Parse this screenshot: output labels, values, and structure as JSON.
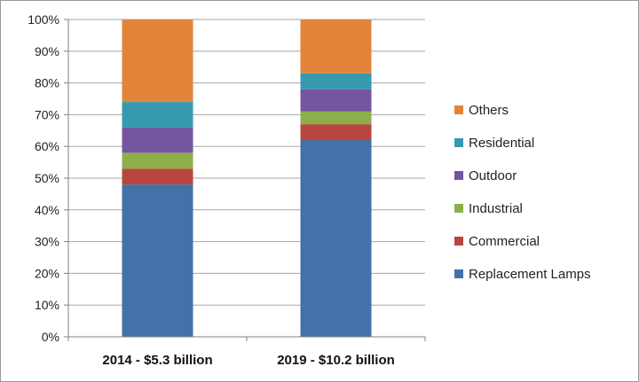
{
  "chart_data": {
    "type": "bar",
    "stacked": true,
    "percent": true,
    "categories": [
      "2014 - $5.3 billion",
      "2019 - $10.2 billion"
    ],
    "series": [
      {
        "name": "Replacement Lamps",
        "color": "#4472a8",
        "values": [
          48,
          62
        ]
      },
      {
        "name": "Commercial",
        "color": "#b84540",
        "values": [
          5,
          5
        ]
      },
      {
        "name": "Industrial",
        "color": "#8caf4a",
        "values": [
          5,
          4
        ]
      },
      {
        "name": "Outdoor",
        "color": "#7455a0",
        "values": [
          8,
          7
        ]
      },
      {
        "name": "Residential",
        "color": "#3799b0",
        "values": [
          8,
          5
        ]
      },
      {
        "name": "Others",
        "color": "#e2853a",
        "values": [
          26,
          17
        ]
      }
    ],
    "yticks": [
      "0%",
      "10%",
      "20%",
      "30%",
      "40%",
      "50%",
      "60%",
      "70%",
      "80%",
      "90%",
      "100%"
    ],
    "ylim": [
      0,
      100
    ],
    "grid": true,
    "legend_position": "right",
    "legend_order": [
      "Others",
      "Residential",
      "Outdoor",
      "Industrial",
      "Commercial",
      "Replacement Lamps"
    ]
  }
}
